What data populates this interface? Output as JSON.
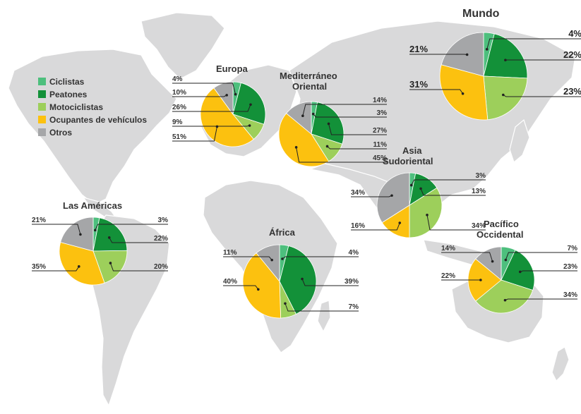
{
  "legend": [
    {
      "label": "Ciclistas",
      "color": "#4dbf7d"
    },
    {
      "label": "Peatones",
      "color": "#139139"
    },
    {
      "label": "Motociclistas",
      "color": "#9dcf5b"
    },
    {
      "label": "Ocupantes de vehículos",
      "color": "#fcc10f"
    },
    {
      "label": "Otros",
      "color": "#a5a6a8"
    }
  ],
  "chart_data": [
    {
      "type": "pie",
      "title": "Mundo",
      "categories": [
        "Ciclistas",
        "Peatones",
        "Motociclistas",
        "Ocupantes de vehículos",
        "Otros"
      ],
      "values": [
        4,
        22,
        23,
        31,
        21
      ],
      "labels": [
        "4%",
        "22%",
        "23%",
        "31%",
        "21%"
      ]
    },
    {
      "type": "pie",
      "title": "Europa",
      "categories": [
        "Ciclistas",
        "Peatones",
        "Motociclistas",
        "Ocupantes de vehículos",
        "Otros"
      ],
      "values": [
        4,
        26,
        9,
        51,
        10
      ],
      "labels": [
        "4%",
        "26%",
        "9%",
        "51%",
        "10%"
      ]
    },
    {
      "type": "pie",
      "title": "Mediterráneo Oriental",
      "categories": [
        "Ciclistas",
        "Peatones",
        "Motociclistas",
        "Ocupantes de vehículos",
        "Otros"
      ],
      "values": [
        3,
        27,
        11,
        45,
        14
      ],
      "labels": [
        "3%",
        "27%",
        "11%",
        "45%",
        "14%"
      ]
    },
    {
      "type": "pie",
      "title": "Asia Sudoriental",
      "categories": [
        "Ciclistas",
        "Peatones",
        "Motociclistas",
        "Ocupantes de vehículos",
        "Otros"
      ],
      "values": [
        3,
        13,
        34,
        16,
        34
      ],
      "labels": [
        "3%",
        "13%",
        "34%",
        "16%",
        "34%"
      ]
    },
    {
      "type": "pie",
      "title": "Las Américas",
      "categories": [
        "Ciclistas",
        "Peatones",
        "Motociclistas",
        "Ocupantes de vehículos",
        "Otros"
      ],
      "values": [
        3,
        22,
        20,
        35,
        21
      ],
      "labels": [
        "3%",
        "22%",
        "20%",
        "35%",
        "21%"
      ]
    },
    {
      "type": "pie",
      "title": "África",
      "categories": [
        "Ciclistas",
        "Peatones",
        "Motociclistas",
        "Ocupantes de vehículos",
        "Otros"
      ],
      "values": [
        4,
        39,
        7,
        40,
        11
      ],
      "labels": [
        "4%",
        "39%",
        "7%",
        "40%",
        "11%"
      ]
    },
    {
      "type": "pie",
      "title": "Pacífico Occidental",
      "categories": [
        "Ciclistas",
        "Peatones",
        "Motociclistas",
        "Ocupantes de vehículos",
        "Otros"
      ],
      "values": [
        7,
        23,
        34,
        22,
        14
      ],
      "labels": [
        "7%",
        "23%",
        "34%",
        "22%",
        "14%"
      ]
    }
  ]
}
